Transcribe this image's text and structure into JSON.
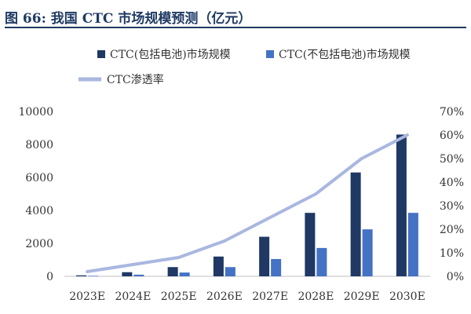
{
  "figure": {
    "title": "图 66: 我国 CTC 市场规模预测（亿元）"
  },
  "colors": {
    "series_incl": "#1f3864",
    "series_excl": "#4472c4",
    "series_rate": "#a9b7e0",
    "title": "#1f3a64",
    "axis": "#bfbfbf"
  },
  "chart_data": {
    "type": "bar",
    "categories": [
      "2023E",
      "2024E",
      "2025E",
      "2026E",
      "2027E",
      "2028E",
      "2029E",
      "2030E"
    ],
    "series": [
      {
        "name": "CTC(包括电池)市场规模",
        "type": "bar",
        "axis": "left",
        "values": [
          60,
          250,
          560,
          1200,
          2400,
          3850,
          6300,
          8600
        ]
      },
      {
        "name": "CTC(不包括电池)市场规模",
        "type": "bar",
        "axis": "left",
        "values": [
          30,
          100,
          230,
          560,
          1050,
          1720,
          2850,
          3850
        ]
      },
      {
        "name": "CTC渗透率",
        "type": "line",
        "axis": "right",
        "values": [
          0.02,
          0.05,
          0.08,
          0.15,
          0.25,
          0.35,
          0.5,
          0.6
        ]
      }
    ],
    "y_left": {
      "ylim": [
        0,
        10000
      ],
      "ticks": [
        "0",
        "2000",
        "4000",
        "6000",
        "8000",
        "10000"
      ]
    },
    "y_right": {
      "ylim": [
        0,
        0.7
      ],
      "ticks": [
        "0%",
        "10%",
        "20%",
        "30%",
        "40%",
        "50%",
        "60%",
        "70%"
      ]
    },
    "grid": false,
    "legend_position": "top-center"
  }
}
